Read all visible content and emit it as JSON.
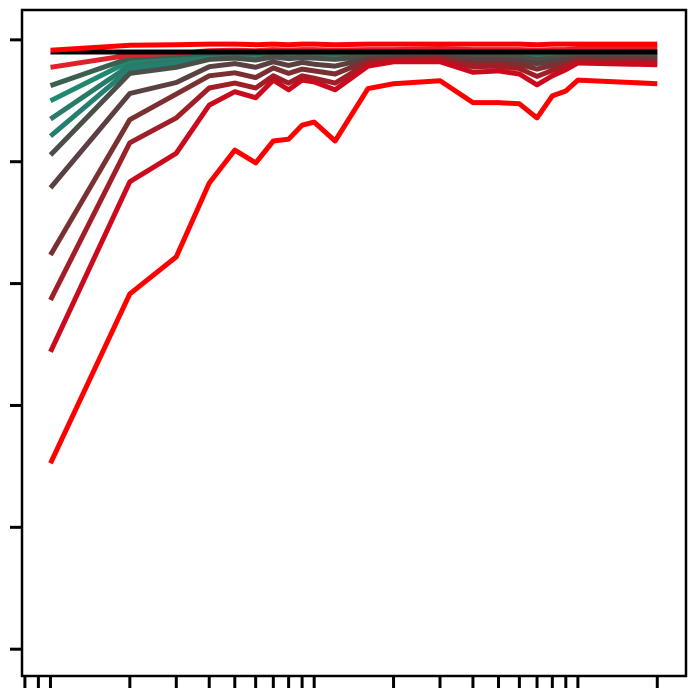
{
  "chart_data": {
    "type": "line",
    "xscale": "log",
    "grid": false,
    "linewidth": 5,
    "x": [
      1,
      2,
      3,
      4,
      5,
      6,
      7,
      8,
      9,
      10,
      12,
      16,
      20,
      30,
      40,
      50,
      60,
      70,
      80,
      90,
      100,
      200
    ],
    "xlim": [
      0.78,
      257
    ],
    "xticks": [
      0.8,
      0.9,
      1,
      2,
      3,
      4,
      5,
      6,
      7,
      8,
      9,
      10,
      20,
      30,
      40,
      50,
      60,
      70,
      80,
      90,
      100,
      200
    ],
    "ylim": [
      -0.044,
      1.049
    ],
    "yticks": [
      0,
      0.2,
      0.4,
      0.6,
      0.8,
      1.0
    ],
    "series": [
      {
        "color": "#1f8a70",
        "values": [
          0.9,
          0.965,
          0.972,
          0.976,
          0.977,
          0.976,
          0.978,
          0.977,
          0.978,
          0.977,
          0.977,
          0.978,
          0.978,
          0.979,
          0.977,
          0.977,
          0.977,
          0.976,
          0.977,
          0.977,
          0.978,
          0.978
        ]
      },
      {
        "color": "#2a7a68",
        "values": [
          0.87,
          0.958,
          0.966,
          0.973,
          0.975,
          0.973,
          0.976,
          0.974,
          0.976,
          0.975,
          0.974,
          0.976,
          0.977,
          0.977,
          0.975,
          0.975,
          0.975,
          0.973,
          0.974,
          0.975,
          0.976,
          0.976
        ]
      },
      {
        "color": "#238070",
        "values": [
          0.842,
          0.952,
          0.96,
          0.97,
          0.972,
          0.97,
          0.974,
          0.971,
          0.973,
          0.972,
          0.971,
          0.975,
          0.975,
          0.976,
          0.974,
          0.974,
          0.973,
          0.971,
          0.972,
          0.974,
          0.975,
          0.974
        ]
      },
      {
        "color": "#3a6050",
        "values": [
          0.925,
          0.97,
          0.975,
          0.978,
          0.979,
          0.978,
          0.979,
          0.978,
          0.979,
          0.979,
          0.978,
          0.979,
          0.979,
          0.98,
          0.979,
          0.979,
          0.979,
          0.978,
          0.979,
          0.979,
          0.979,
          0.979
        ]
      },
      {
        "color": "#4a5048",
        "values": [
          0.811,
          0.945,
          0.955,
          0.968,
          0.97,
          0.967,
          0.972,
          0.969,
          0.971,
          0.97,
          0.968,
          0.973,
          0.974,
          0.975,
          0.972,
          0.972,
          0.971,
          0.968,
          0.97,
          0.972,
          0.973,
          0.972
        ]
      },
      {
        "color": "#5a4040",
        "values": [
          0.757,
          0.912,
          0.93,
          0.956,
          0.961,
          0.955,
          0.964,
          0.958,
          0.963,
          0.96,
          0.957,
          0.969,
          0.97,
          0.972,
          0.968,
          0.968,
          0.966,
          0.961,
          0.965,
          0.968,
          0.97,
          0.969
        ]
      },
      {
        "color": "#7a3030",
        "values": [
          0.647,
          0.869,
          0.911,
          0.941,
          0.946,
          0.938,
          0.954,
          0.945,
          0.952,
          0.949,
          0.944,
          0.966,
          0.968,
          0.97,
          0.962,
          0.962,
          0.96,
          0.952,
          0.958,
          0.962,
          0.968,
          0.966
        ]
      },
      {
        "color": "#a01e28",
        "values": [
          0.573,
          0.831,
          0.872,
          0.921,
          0.929,
          0.921,
          0.941,
          0.929,
          0.941,
          0.937,
          0.929,
          0.962,
          0.966,
          0.968,
          0.956,
          0.957,
          0.953,
          0.94,
          0.95,
          0.957,
          0.965,
          0.962
        ]
      },
      {
        "color": "#cc0a1e",
        "values": [
          0.488,
          0.767,
          0.814,
          0.893,
          0.915,
          0.905,
          0.934,
          0.918,
          0.934,
          0.931,
          0.918,
          0.957,
          0.964,
          0.964,
          0.947,
          0.949,
          0.944,
          0.926,
          0.941,
          0.951,
          0.962,
          0.959
        ]
      },
      {
        "color": "#ff0000",
        "values": [
          0.305,
          0.583,
          0.644,
          0.765,
          0.819,
          0.798,
          0.834,
          0.837,
          0.86,
          0.865,
          0.834,
          0.92,
          0.928,
          0.933,
          0.897,
          0.897,
          0.895,
          0.872,
          0.908,
          0.916,
          0.934,
          0.928
        ]
      },
      {
        "color": "#e0202a",
        "values": [
          0.955,
          0.975,
          0.978,
          0.982,
          0.983,
          0.982,
          0.984,
          0.983,
          0.984,
          0.984,
          0.983,
          0.984,
          0.984,
          0.985,
          0.984,
          0.984,
          0.984,
          0.983,
          0.984,
          0.984,
          0.985,
          0.985
        ]
      },
      {
        "color": "#000000",
        "values": [
          0.98,
          0.98,
          0.98,
          0.98,
          0.98,
          0.98,
          0.98,
          0.98,
          0.98,
          0.98,
          0.98,
          0.98,
          0.98,
          0.98,
          0.98,
          0.98,
          0.98,
          0.98,
          0.98,
          0.98,
          0.98,
          0.98
        ]
      },
      {
        "color": "#ff0000",
        "values": [
          0.983,
          0.991,
          0.992,
          0.993,
          0.993,
          0.992,
          0.993,
          0.992,
          0.993,
          0.993,
          0.992,
          0.993,
          0.993,
          0.993,
          0.993,
          0.993,
          0.993,
          0.992,
          0.993,
          0.993,
          0.993,
          0.993
        ]
      }
    ]
  }
}
